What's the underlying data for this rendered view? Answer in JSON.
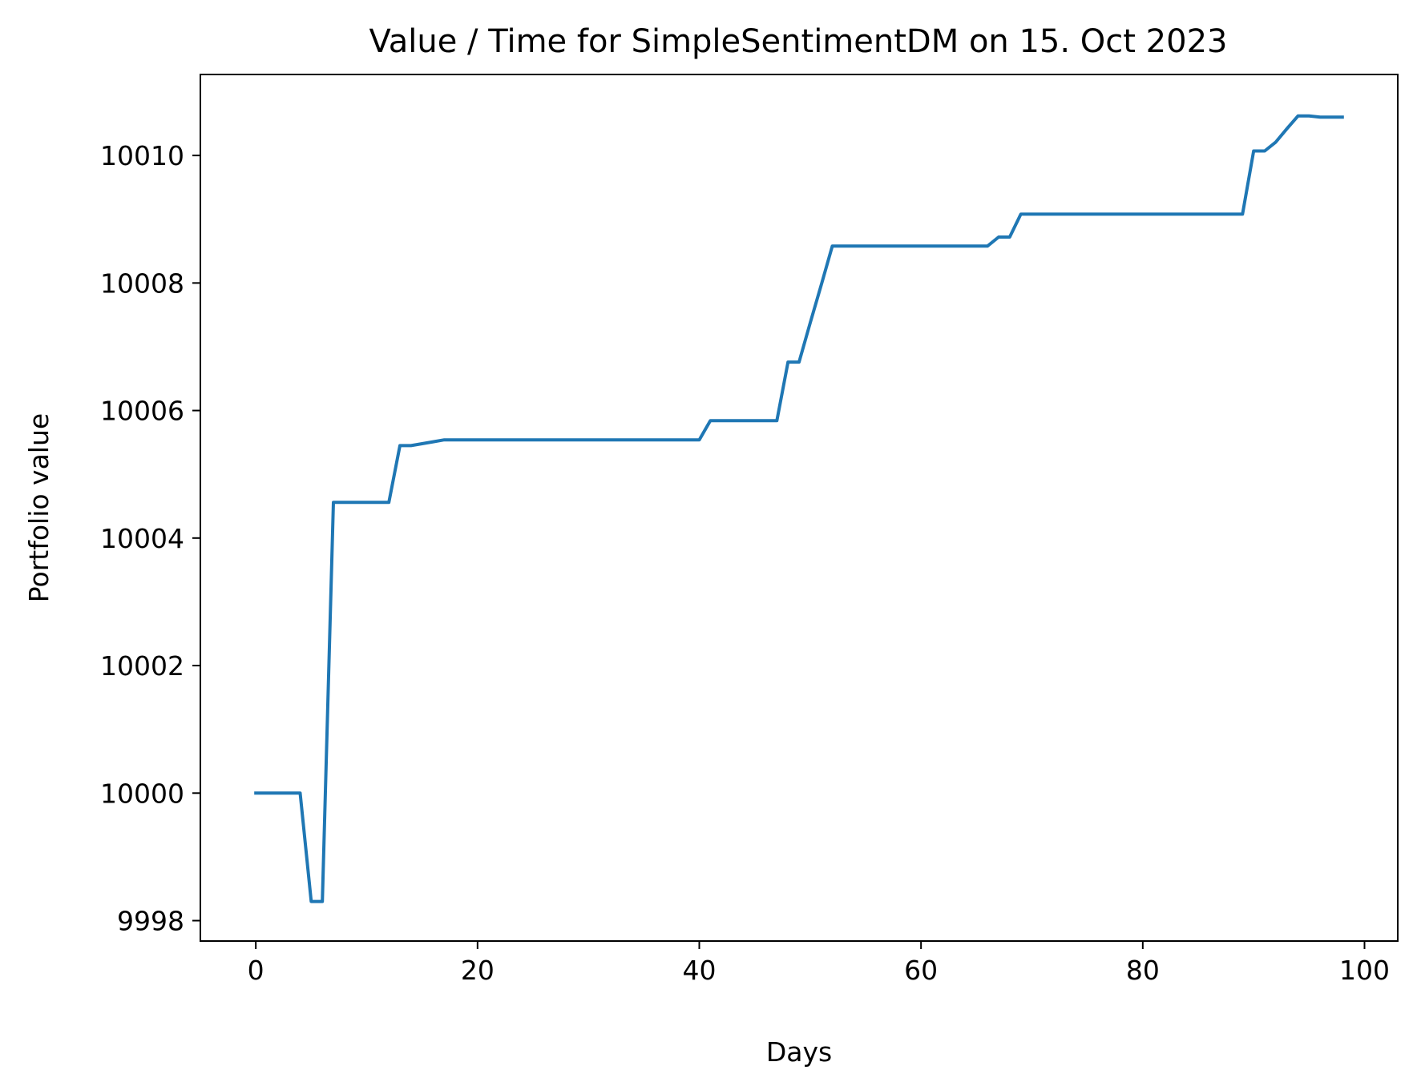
{
  "chart_data": {
    "type": "line",
    "title": "Value / Time for SimpleSentimentDM on 15. Oct 2023",
    "xlabel": "Days",
    "ylabel": "Portfolio value",
    "xlim": [
      -5,
      103
    ],
    "ylim": [
      9997.68,
      10011.27
    ],
    "xticks": [
      0,
      20,
      40,
      60,
      80,
      100
    ],
    "yticks": [
      9998,
      10000,
      10002,
      10004,
      10006,
      10008,
      10010
    ],
    "grid": false,
    "legend": "none",
    "colors": {
      "line": "#1f77b4",
      "axes": "#000000",
      "background": "#ffffff"
    },
    "series": [
      {
        "x": [
          0,
          1,
          2,
          3,
          4,
          5,
          6,
          7,
          8,
          9,
          10,
          11,
          12,
          13,
          14,
          15,
          16,
          17,
          18,
          19,
          20,
          21,
          22,
          23,
          24,
          25,
          26,
          27,
          28,
          29,
          30,
          31,
          32,
          33,
          34,
          35,
          36,
          37,
          38,
          39,
          40,
          41,
          42,
          43,
          44,
          45,
          46,
          47,
          48,
          49,
          50,
          51,
          52,
          53,
          54,
          55,
          56,
          57,
          58,
          59,
          60,
          61,
          62,
          63,
          64,
          65,
          66,
          67,
          68,
          69,
          70,
          71,
          72,
          73,
          74,
          75,
          76,
          77,
          78,
          79,
          80,
          81,
          82,
          83,
          84,
          85,
          86,
          87,
          88,
          89,
          90,
          91,
          92,
          93,
          94,
          95,
          96,
          97,
          98
        ],
        "y": [
          10000,
          10000,
          10000,
          10000,
          10000,
          9998.3,
          9998.3,
          10004.56,
          10004.56,
          10004.56,
          10004.56,
          10004.56,
          10004.56,
          10005.45,
          10005.45,
          10005.48,
          10005.51,
          10005.54,
          10005.54,
          10005.54,
          10005.54,
          10005.54,
          10005.54,
          10005.54,
          10005.54,
          10005.54,
          10005.54,
          10005.54,
          10005.54,
          10005.54,
          10005.54,
          10005.54,
          10005.54,
          10005.54,
          10005.54,
          10005.54,
          10005.54,
          10005.54,
          10005.54,
          10005.54,
          10005.54,
          10005.84,
          10005.84,
          10005.84,
          10005.84,
          10005.84,
          10005.84,
          10005.84,
          10006.76,
          10006.76,
          10007.37,
          10007.97,
          10008.58,
          10008.58,
          10008.58,
          10008.58,
          10008.58,
          10008.58,
          10008.58,
          10008.58,
          10008.58,
          10008.58,
          10008.58,
          10008.58,
          10008.58,
          10008.58,
          10008.58,
          10008.72,
          10008.72,
          10009.08,
          10009.08,
          10009.08,
          10009.08,
          10009.08,
          10009.08,
          10009.08,
          10009.08,
          10009.08,
          10009.08,
          10009.08,
          10009.08,
          10009.08,
          10009.08,
          10009.08,
          10009.08,
          10009.08,
          10009.08,
          10009.08,
          10009.08,
          10009.08,
          10010.07,
          10010.07,
          10010.21,
          10010.42,
          10010.62,
          10010.62,
          10010.6,
          10010.6,
          10010.6
        ]
      }
    ]
  }
}
